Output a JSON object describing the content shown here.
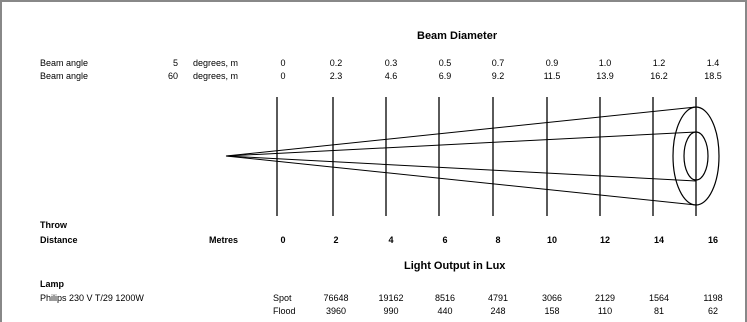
{
  "headings": {
    "beam_diameter": "Beam Diameter",
    "light_output": "Light Output in Lux",
    "throw": "Throw",
    "distance": "Distance",
    "metres": "Metres",
    "lamp": "Lamp"
  },
  "beam_rows": [
    {
      "label": "Beam angle",
      "angle": "5",
      "unit": "degrees, m",
      "values": [
        "0",
        "0.2",
        "0.3",
        "0.5",
        "0.7",
        "0.9",
        "1.0",
        "1.2",
        "1.4"
      ]
    },
    {
      "label": "Beam angle",
      "angle": "60",
      "unit": "degrees, m",
      "values": [
        "0",
        "2.3",
        "4.6",
        "6.9",
        "9.2",
        "11.5",
        "13.9",
        "16.2",
        "18.5"
      ]
    }
  ],
  "distances": [
    "0",
    "2",
    "4",
    "6",
    "8",
    "10",
    "12",
    "14",
    "16"
  ],
  "lamp": {
    "name": "Philips 230 V T/29 1200W",
    "rows": [
      {
        "mode": "Spot",
        "values": [
          "76648",
          "19162",
          "8516",
          "4791",
          "3066",
          "2129",
          "1564",
          "1198"
        ]
      },
      {
        "mode": "Flood",
        "values": [
          "3960",
          "990",
          "440",
          "248",
          "158",
          "110",
          "81",
          "62"
        ]
      }
    ]
  }
}
